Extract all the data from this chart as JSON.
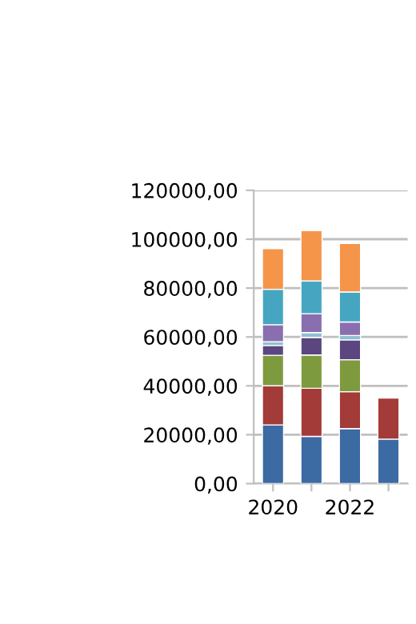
{
  "chart_data": {
    "type": "bar",
    "stacked": true,
    "categories": [
      "2020",
      null,
      "2022",
      null
    ],
    "series": [
      {
        "color": "#3c6aa3",
        "values": [
          24000,
          19300,
          22500,
          18200
        ]
      },
      {
        "color": "#a33b38",
        "values": [
          16000,
          19700,
          15100,
          16800
        ]
      },
      {
        "color": "#7e9a3f",
        "values": [
          12500,
          13600,
          13100,
          null
        ]
      },
      {
        "color": "#5b4680",
        "values": [
          4000,
          7200,
          8100,
          null
        ]
      },
      {
        "color": "#8fc0d0",
        "values": [
          1500,
          2000,
          1800,
          null
        ]
      },
      {
        "color": "#8a6fb0",
        "values": [
          7000,
          7700,
          5500,
          null
        ]
      },
      {
        "color": "#46a6c2",
        "values": [
          14500,
          13400,
          12300,
          null
        ]
      },
      {
        "color": "#f5954a",
        "values": [
          16600,
          20600,
          19900,
          null
        ]
      }
    ],
    "ylim": [
      0,
      120000
    ],
    "yticks": [
      {
        "value": 0,
        "label": "0,00"
      },
      {
        "value": 20000,
        "label": "20000,00"
      },
      {
        "value": 40000,
        "label": "40000,00"
      },
      {
        "value": 60000,
        "label": "60000,00"
      },
      {
        "value": 80000,
        "label": "80000,00"
      },
      {
        "value": 100000,
        "label": "100000,00"
      },
      {
        "value": 120000,
        "label": "120000,00"
      }
    ],
    "grid": "y"
  }
}
